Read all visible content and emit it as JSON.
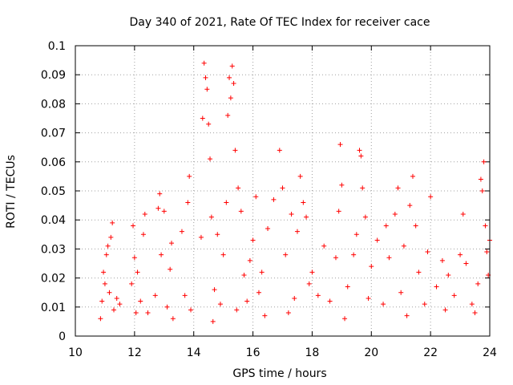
{
  "chart_data": {
    "type": "scatter",
    "title": "Day 340 of 2021, Rate Of TEC Index for receiver cace",
    "xlabel": "GPS time / hours",
    "ylabel": "ROTI / TECUs",
    "xlim": [
      10,
      24
    ],
    "ylim": [
      0,
      0.1
    ],
    "xticks": [
      10,
      12,
      14,
      16,
      18,
      20,
      22,
      24
    ],
    "xtick_labels": [
      "10",
      "12",
      "14",
      "16",
      "18",
      "20",
      "22",
      "24"
    ],
    "yticks": [
      0,
      0.01,
      0.02,
      0.03,
      0.04,
      0.05,
      0.06,
      0.07,
      0.08,
      0.09,
      0.1
    ],
    "ytick_labels": [
      "0",
      "0.01",
      "0.02",
      "0.03",
      "0.04",
      "0.05",
      "0.06",
      "0.07",
      "0.08",
      "0.09",
      "0.1"
    ],
    "grid": true,
    "marker": "+",
    "series": [
      {
        "name": "ROTI",
        "color": "#ff0000",
        "points": [
          [
            10.85,
            0.006
          ],
          [
            10.9,
            0.012
          ],
          [
            10.95,
            0.022
          ],
          [
            11.0,
            0.018
          ],
          [
            11.05,
            0.028
          ],
          [
            11.1,
            0.031
          ],
          [
            11.15,
            0.015
          ],
          [
            11.2,
            0.034
          ],
          [
            11.25,
            0.039
          ],
          [
            11.3,
            0.009
          ],
          [
            11.4,
            0.013
          ],
          [
            11.5,
            0.011
          ],
          [
            11.9,
            0.018
          ],
          [
            11.95,
            0.038
          ],
          [
            12.0,
            0.027
          ],
          [
            12.05,
            0.008
          ],
          [
            12.1,
            0.022
          ],
          [
            12.2,
            0.012
          ],
          [
            12.3,
            0.035
          ],
          [
            12.35,
            0.042
          ],
          [
            12.45,
            0.008
          ],
          [
            12.7,
            0.014
          ],
          [
            12.8,
            0.044
          ],
          [
            12.85,
            0.049
          ],
          [
            12.9,
            0.028
          ],
          [
            13.0,
            0.043
          ],
          [
            13.1,
            0.01
          ],
          [
            13.2,
            0.023
          ],
          [
            13.25,
            0.032
          ],
          [
            13.3,
            0.006
          ],
          [
            13.6,
            0.036
          ],
          [
            13.7,
            0.014
          ],
          [
            13.8,
            0.046
          ],
          [
            13.85,
            0.055
          ],
          [
            13.9,
            0.009
          ],
          [
            14.25,
            0.034
          ],
          [
            14.3,
            0.075
          ],
          [
            14.35,
            0.094
          ],
          [
            14.4,
            0.089
          ],
          [
            14.45,
            0.085
          ],
          [
            14.5,
            0.073
          ],
          [
            14.55,
            0.061
          ],
          [
            14.6,
            0.041
          ],
          [
            14.7,
            0.016
          ],
          [
            14.8,
            0.035
          ],
          [
            14.9,
            0.011
          ],
          [
            15.0,
            0.028
          ],
          [
            15.1,
            0.046
          ],
          [
            15.15,
            0.076
          ],
          [
            15.2,
            0.089
          ],
          [
            15.25,
            0.082
          ],
          [
            15.3,
            0.093
          ],
          [
            15.35,
            0.087
          ],
          [
            15.4,
            0.064
          ],
          [
            15.5,
            0.051
          ],
          [
            15.6,
            0.043
          ],
          [
            15.7,
            0.021
          ],
          [
            15.8,
            0.012
          ],
          [
            15.9,
            0.026
          ],
          [
            16.0,
            0.033
          ],
          [
            16.1,
            0.048
          ],
          [
            16.2,
            0.015
          ],
          [
            16.3,
            0.022
          ],
          [
            16.5,
            0.037
          ],
          [
            16.7,
            0.047
          ],
          [
            16.9,
            0.064
          ],
          [
            17.0,
            0.051
          ],
          [
            17.1,
            0.028
          ],
          [
            17.3,
            0.042
          ],
          [
            17.4,
            0.013
          ],
          [
            17.5,
            0.036
          ],
          [
            17.6,
            0.055
          ],
          [
            17.7,
            0.046
          ],
          [
            17.8,
            0.041
          ],
          [
            17.9,
            0.018
          ],
          [
            18.0,
            0.022
          ],
          [
            18.2,
            0.014
          ],
          [
            18.4,
            0.031
          ],
          [
            18.6,
            0.012
          ],
          [
            18.8,
            0.027
          ],
          [
            18.9,
            0.043
          ],
          [
            18.95,
            0.066
          ],
          [
            19.0,
            0.052
          ],
          [
            19.2,
            0.017
          ],
          [
            19.4,
            0.028
          ],
          [
            19.5,
            0.035
          ],
          [
            19.6,
            0.064
          ],
          [
            19.65,
            0.062
          ],
          [
            19.7,
            0.051
          ],
          [
            19.8,
            0.041
          ],
          [
            19.9,
            0.013
          ],
          [
            20.0,
            0.024
          ],
          [
            20.2,
            0.033
          ],
          [
            20.4,
            0.011
          ],
          [
            20.5,
            0.038
          ],
          [
            20.6,
            0.027
          ],
          [
            20.8,
            0.042
          ],
          [
            20.9,
            0.051
          ],
          [
            21.0,
            0.015
          ],
          [
            21.1,
            0.031
          ],
          [
            21.3,
            0.045
          ],
          [
            21.4,
            0.055
          ],
          [
            21.5,
            0.038
          ],
          [
            21.6,
            0.022
          ],
          [
            21.8,
            0.011
          ],
          [
            21.9,
            0.029
          ],
          [
            22.0,
            0.048
          ],
          [
            22.2,
            0.017
          ],
          [
            22.4,
            0.026
          ],
          [
            22.6,
            0.021
          ],
          [
            22.8,
            0.014
          ],
          [
            23.0,
            0.028
          ],
          [
            23.1,
            0.042
          ],
          [
            23.2,
            0.025
          ],
          [
            23.4,
            0.011
          ],
          [
            23.6,
            0.018
          ],
          [
            23.7,
            0.054
          ],
          [
            23.75,
            0.05
          ],
          [
            23.8,
            0.06
          ],
          [
            23.85,
            0.038
          ],
          [
            23.9,
            0.029
          ],
          [
            23.95,
            0.021
          ],
          [
            24.0,
            0.033
          ],
          [
            23.5,
            0.008
          ],
          [
            22.5,
            0.009
          ],
          [
            21.2,
            0.007
          ],
          [
            19.1,
            0.006
          ],
          [
            17.2,
            0.008
          ],
          [
            16.4,
            0.007
          ],
          [
            15.45,
            0.009
          ],
          [
            14.65,
            0.005
          ]
        ]
      }
    ]
  }
}
